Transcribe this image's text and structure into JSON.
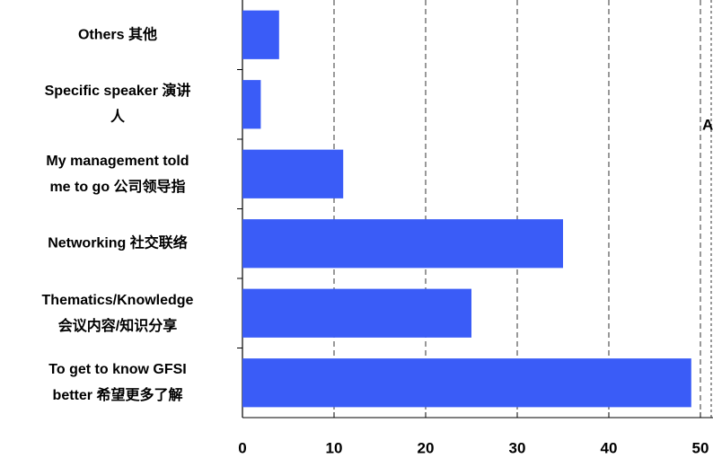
{
  "chart_data": {
    "type": "barh",
    "categories": [
      "Others 其他",
      "Specific speaker 演讲\n人",
      "My management told\nme to go 公司领导指",
      "Networking 社交联络",
      "Thematics/Knowledge\n会议内容/知识分享",
      "To get to know GFSI\nbetter  希望更多了解"
    ],
    "values": [
      4,
      2,
      11,
      35,
      25,
      49
    ],
    "color": "#3a5cf7",
    "xlim": [
      0,
      50
    ],
    "xticks": [
      0,
      10,
      20,
      30,
      40,
      50
    ],
    "grid": true,
    "annotation": "A"
  }
}
